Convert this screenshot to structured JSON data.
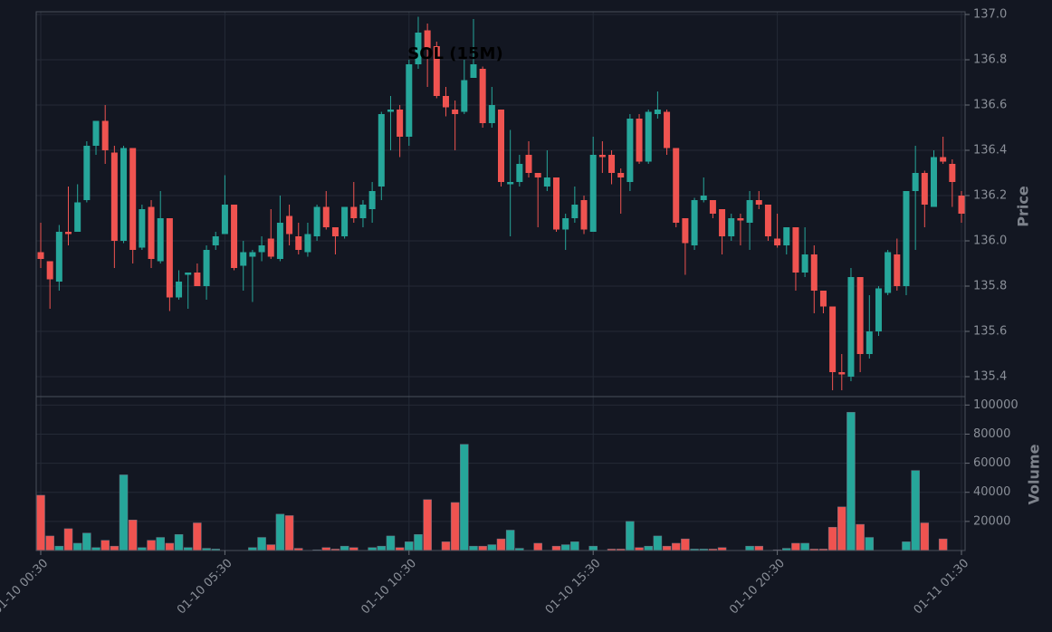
{
  "chart_data": [
    {
      "type": "candlestick",
      "title": "SOL (15M)",
      "ylabel": "Price",
      "up_color": "#26a69a",
      "down_color": "#ef5350",
      "grid": true,
      "categories": [
        "01-10 00:30",
        null,
        null,
        null,
        null,
        null,
        null,
        null,
        null,
        null,
        null,
        null,
        null,
        null,
        null,
        null,
        null,
        null,
        null,
        null,
        "01-10 05:30",
        null,
        null,
        null,
        null,
        null,
        null,
        null,
        null,
        null,
        null,
        null,
        null,
        null,
        null,
        null,
        null,
        null,
        null,
        null,
        "01-10 10:30",
        null,
        null,
        null,
        null,
        null,
        null,
        null,
        null,
        null,
        null,
        null,
        null,
        null,
        null,
        null,
        null,
        null,
        null,
        null,
        "01-10 15:30",
        null,
        null,
        null,
        null,
        null,
        null,
        null,
        null,
        null,
        null,
        null,
        null,
        null,
        null,
        null,
        null,
        null,
        null,
        null,
        "01-10 20:30",
        null,
        null,
        null,
        null,
        null,
        null,
        null,
        null,
        null,
        null,
        null,
        null,
        null,
        null,
        null,
        null,
        null,
        null,
        null,
        "01-11 01:30"
      ],
      "open": [
        135.95,
        135.91,
        135.82,
        136.04,
        136.04,
        136.18,
        136.42,
        136.53,
        136.39,
        136.0,
        136.41,
        135.97,
        136.15,
        135.91,
        136.1,
        135.75,
        135.85,
        135.86,
        135.8,
        135.98,
        136.03,
        136.16,
        135.89,
        135.93,
        135.95,
        136.01,
        135.92,
        136.11,
        136.02,
        135.95,
        136.02,
        136.15,
        136.06,
        136.02,
        136.15,
        136.1,
        136.14,
        136.24,
        136.57,
        136.58,
        136.46,
        136.78,
        136.93,
        136.86,
        136.64,
        136.58,
        136.57,
        136.72,
        136.76,
        136.52,
        136.58,
        136.25,
        136.26,
        136.38,
        136.3,
        136.24,
        136.28,
        136.05,
        136.1,
        136.18,
        136.04,
        136.38,
        136.38,
        136.3,
        136.26,
        136.54,
        136.35,
        136.56,
        136.57,
        136.41,
        136.1,
        135.98,
        136.18,
        136.18,
        136.14,
        136.02,
        136.1,
        136.08,
        136.18,
        136.16,
        136.01,
        135.98,
        136.06,
        135.86,
        135.94,
        135.78,
        135.71,
        135.42,
        135.4,
        135.84,
        135.5,
        135.6,
        135.77,
        135.94,
        135.8,
        136.22,
        136.3,
        136.15,
        136.37,
        136.34,
        136.2
      ],
      "high": [
        136.08,
        135.91,
        136.07,
        136.24,
        136.25,
        136.44,
        136.53,
        136.6,
        136.42,
        136.42,
        136.41,
        136.16,
        136.18,
        136.22,
        136.1,
        135.87,
        135.86,
        135.9,
        135.98,
        136.04,
        136.29,
        136.16,
        136.0,
        135.96,
        136.02,
        136.14,
        136.2,
        136.16,
        136.08,
        136.08,
        136.16,
        136.22,
        136.06,
        136.15,
        136.26,
        136.18,
        136.26,
        136.57,
        136.64,
        136.6,
        136.8,
        136.99,
        136.96,
        136.88,
        136.68,
        136.62,
        136.8,
        136.98,
        136.77,
        136.68,
        136.58,
        136.49,
        136.38,
        136.44,
        136.3,
        136.4,
        136.28,
        136.12,
        136.24,
        136.2,
        136.46,
        136.44,
        136.4,
        136.32,
        136.56,
        136.56,
        136.58,
        136.66,
        136.58,
        136.41,
        136.1,
        136.19,
        136.28,
        136.18,
        136.14,
        136.12,
        136.12,
        136.22,
        136.22,
        136.16,
        136.12,
        136.06,
        136.06,
        136.06,
        135.98,
        135.78,
        135.71,
        135.5,
        135.88,
        135.84,
        135.76,
        135.8,
        135.96,
        136.01,
        136.22,
        136.42,
        136.31,
        136.4,
        136.46,
        136.36,
        136.22
      ],
      "low": [
        135.88,
        135.7,
        135.78,
        135.98,
        136.04,
        136.17,
        136.38,
        136.34,
        135.88,
        135.99,
        135.9,
        135.96,
        135.88,
        135.9,
        135.69,
        135.74,
        135.7,
        135.8,
        135.74,
        135.96,
        136.03,
        135.87,
        135.78,
        135.73,
        135.91,
        135.92,
        135.91,
        135.98,
        135.94,
        135.93,
        136.0,
        136.05,
        135.94,
        136.01,
        136.08,
        136.06,
        136.08,
        136.18,
        136.4,
        136.37,
        136.42,
        136.76,
        136.68,
        136.63,
        136.55,
        136.4,
        136.56,
        136.72,
        136.5,
        136.5,
        136.24,
        136.02,
        136.24,
        136.28,
        136.06,
        136.22,
        136.04,
        135.96,
        136.08,
        136.03,
        136.04,
        136.3,
        136.25,
        136.12,
        136.22,
        136.34,
        136.34,
        136.54,
        136.38,
        136.06,
        135.85,
        135.96,
        136.17,
        136.1,
        135.94,
        136.0,
        135.98,
        135.96,
        136.14,
        136.0,
        135.97,
        135.94,
        135.78,
        135.84,
        135.68,
        135.68,
        135.34,
        135.34,
        135.38,
        135.42,
        135.48,
        135.58,
        135.76,
        135.78,
        135.76,
        135.96,
        136.06,
        136.15,
        136.34,
        136.15,
        136.08
      ],
      "close": [
        135.92,
        135.83,
        136.04,
        136.03,
        136.17,
        136.42,
        136.53,
        136.4,
        136.0,
        136.41,
        135.96,
        136.14,
        135.92,
        136.1,
        135.75,
        135.82,
        135.86,
        135.8,
        135.96,
        136.02,
        136.16,
        135.88,
        135.95,
        135.95,
        135.98,
        135.93,
        136.08,
        136.03,
        135.96,
        136.03,
        136.15,
        136.06,
        136.02,
        136.15,
        136.1,
        136.16,
        136.22,
        136.56,
        136.58,
        136.46,
        136.78,
        136.92,
        136.85,
        136.64,
        136.59,
        136.56,
        136.71,
        136.78,
        136.52,
        136.6,
        136.26,
        136.26,
        136.34,
        136.3,
        136.28,
        136.28,
        136.05,
        136.1,
        136.16,
        136.05,
        136.38,
        136.37,
        136.3,
        136.28,
        136.54,
        136.35,
        136.57,
        136.58,
        136.41,
        136.08,
        135.99,
        136.18,
        136.2,
        136.12,
        136.02,
        136.1,
        136.09,
        136.18,
        136.16,
        136.02,
        135.98,
        136.06,
        135.86,
        135.94,
        135.78,
        135.71,
        135.42,
        135.41,
        135.84,
        135.5,
        135.6,
        135.79,
        135.95,
        135.8,
        136.22,
        136.3,
        136.16,
        136.37,
        136.35,
        136.26,
        136.12
      ],
      "ylim": [
        135.312,
        137.012
      ],
      "yticks": [
        135.4,
        135.6,
        135.8,
        {
          "value": 136.0,
          "label": "136.0"
        },
        136.2,
        136.4,
        136.6,
        136.8,
        {
          "value": 137.0,
          "label": "137.0"
        }
      ]
    },
    {
      "type": "bar",
      "ylabel": "Volume",
      "grid": true,
      "values": [
        38000,
        10000,
        3000,
        15000,
        5000,
        12000,
        2000,
        7000,
        3000,
        52000,
        21000,
        2000,
        7000,
        9000,
        5000,
        11000,
        2000,
        19000,
        1500,
        1000,
        0,
        0,
        0,
        2000,
        9000,
        4000,
        25000,
        24000,
        1500,
        0,
        500,
        2000,
        1000,
        3000,
        2000,
        0,
        2000,
        3000,
        10000,
        2000,
        6000,
        11000,
        35000,
        0,
        6000,
        33000,
        73000,
        3000,
        3000,
        4000,
        8000,
        14000,
        1500,
        0,
        5000,
        0,
        3000,
        4000,
        6000,
        0,
        3000,
        0,
        1000,
        1000,
        20000,
        2000,
        3000,
        10000,
        3000,
        5000,
        8000,
        1000,
        1000,
        1000,
        2000,
        0,
        0,
        3000,
        3000,
        0,
        500,
        1500,
        5000,
        5000,
        1000,
        1000,
        16000,
        30000,
        95000,
        18000,
        9000,
        0,
        0,
        0,
        6000,
        55000,
        19000,
        0,
        8000,
        0,
        0
      ],
      "ylim": [
        0,
        105800
      ],
      "yticks": [
        20000,
        40000,
        60000,
        80000,
        100000
      ]
    }
  ]
}
